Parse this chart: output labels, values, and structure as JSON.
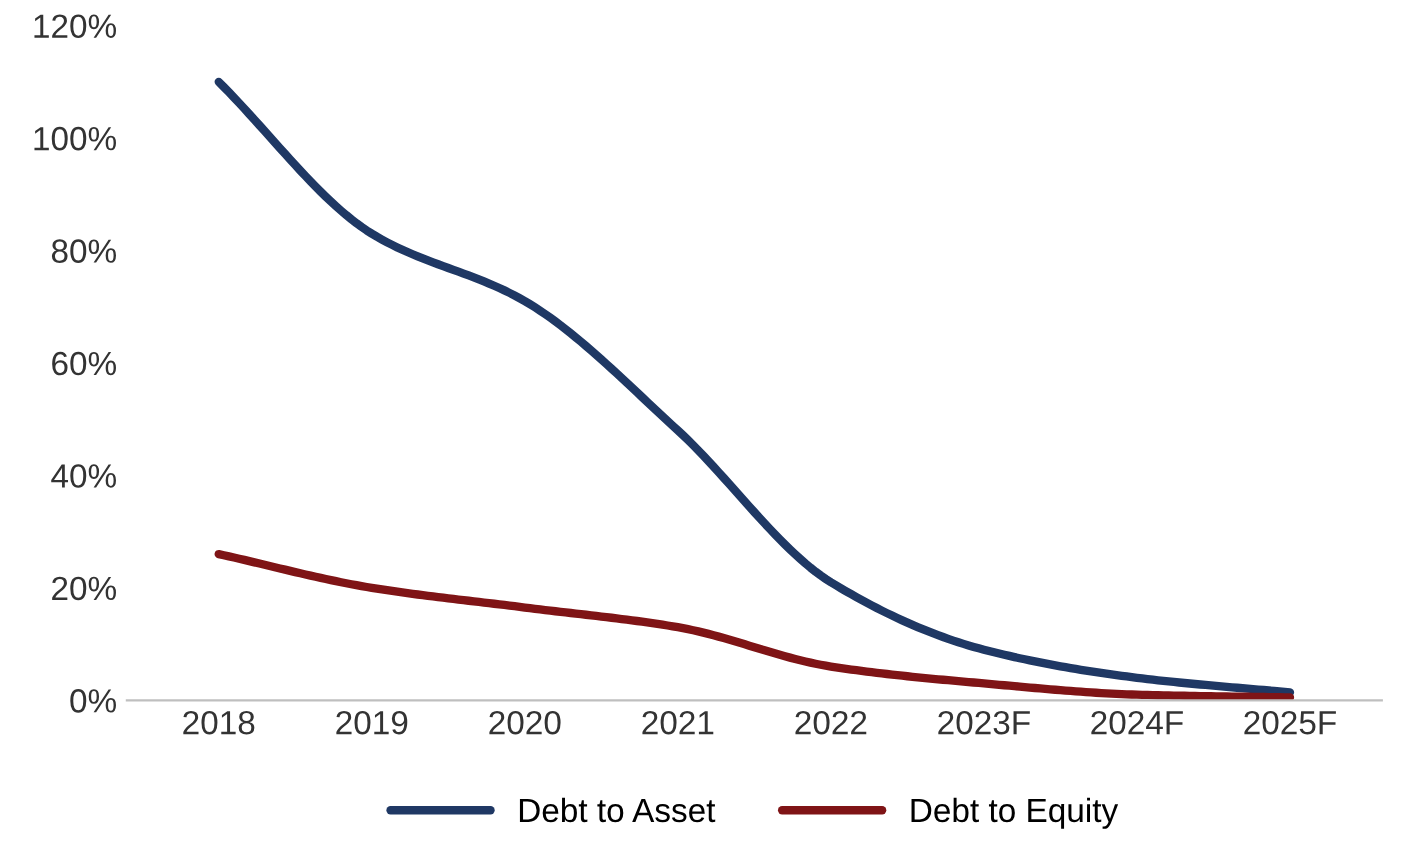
{
  "chart_data": {
    "type": "line",
    "categories": [
      "2018",
      "2019",
      "2020",
      "2021",
      "2022",
      "2023F",
      "2024F",
      "2025F"
    ],
    "series": [
      {
        "name": "Debt to Asset",
        "color": "#1f3864",
        "values": [
          110,
          83,
          71,
          48,
          21,
          9,
          4,
          1.4
        ]
      },
      {
        "name": "Debt to Equity",
        "color": "#7f1416",
        "values": [
          26,
          20,
          16.5,
          13,
          6,
          3,
          1,
          0.5
        ]
      }
    ],
    "ylim": [
      0,
      120
    ],
    "yticks": [
      {
        "value": 0,
        "label": "0%"
      },
      {
        "value": 20,
        "label": "20%"
      },
      {
        "value": 40,
        "label": "40%"
      },
      {
        "value": 60,
        "label": "60%"
      },
      {
        "value": 80,
        "label": "80%"
      },
      {
        "value": 100,
        "label": "100%"
      },
      {
        "value": 120,
        "label": "120%"
      }
    ],
    "grid": false,
    "legend": "bottom",
    "marker": "none",
    "line_style": "solid"
  }
}
